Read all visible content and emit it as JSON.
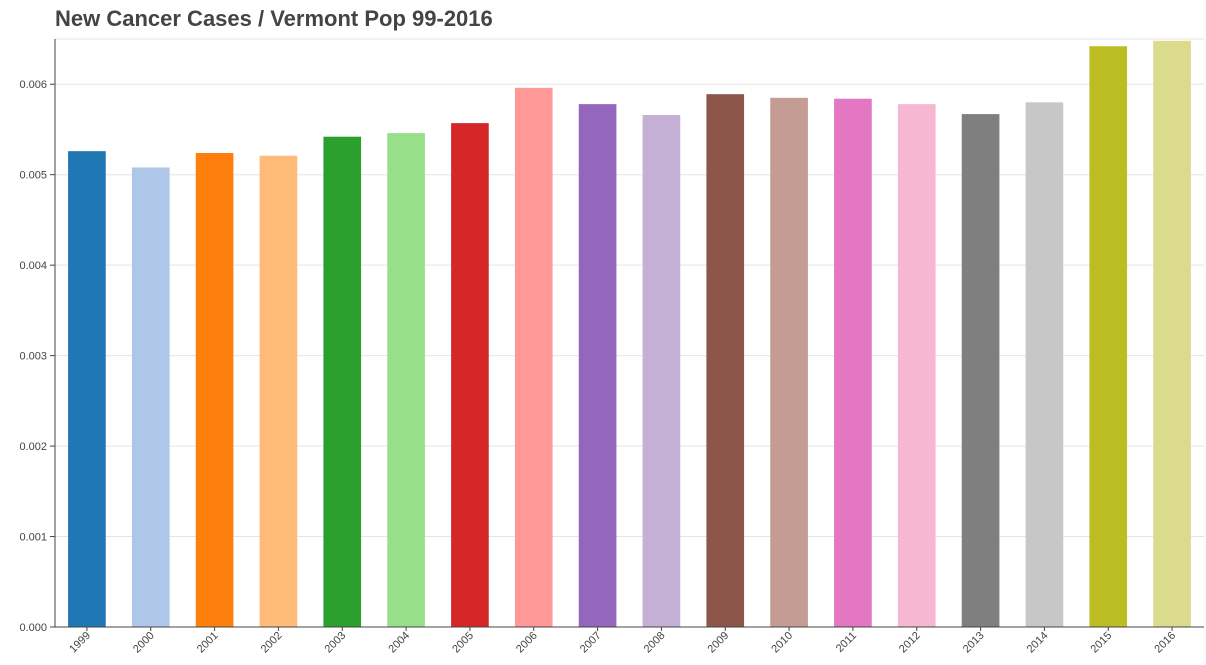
{
  "chart_data": {
    "type": "bar",
    "title": "New Cancer Cases / Vermont Pop 99-2016",
    "xlabel": "",
    "ylabel": "",
    "ylim": [
      0,
      0.0065
    ],
    "yticks": [
      "0.000",
      "0.001",
      "0.002",
      "0.003",
      "0.004",
      "0.005",
      "0.006"
    ],
    "grid": true,
    "legend": "none",
    "categories": [
      "1999",
      "2000",
      "2001",
      "2002",
      "2003",
      "2004",
      "2005",
      "2006",
      "2007",
      "2008",
      "2009",
      "2010",
      "2011",
      "2012",
      "2013",
      "2014",
      "2015",
      "2016"
    ],
    "values": [
      0.00526,
      0.00508,
      0.00524,
      0.00521,
      0.00542,
      0.00546,
      0.00557,
      0.00596,
      0.00578,
      0.00566,
      0.00589,
      0.00585,
      0.00584,
      0.00578,
      0.00567,
      0.0058,
      0.00642,
      0.00648
    ],
    "colors": [
      "#1f77b4",
      "#aec7e8",
      "#ff7f0e",
      "#ffbb78",
      "#2ca02c",
      "#98df8a",
      "#d62728",
      "#ff9896",
      "#9467bd",
      "#c5b0d5",
      "#8c564b",
      "#c49c94",
      "#e377c2",
      "#f7b6d2",
      "#7f7f7f",
      "#c7c7c7",
      "#bcbd22",
      "#dbdb8d"
    ]
  }
}
